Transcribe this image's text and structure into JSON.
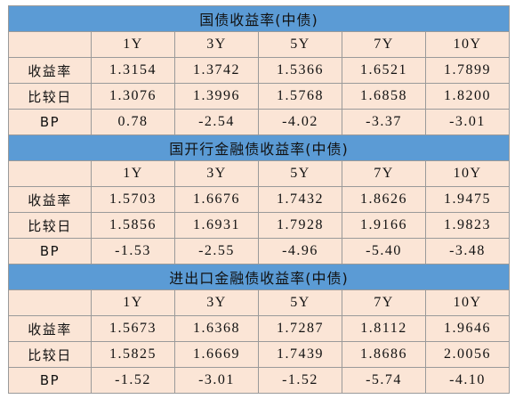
{
  "sections": [
    {
      "title": "国债收益率(中债)",
      "columns": [
        "1Y",
        "3Y",
        "5Y",
        "7Y",
        "10Y"
      ],
      "rows": [
        {
          "label": "收益率",
          "values": [
            "1.3154",
            "1.3742",
            "1.5366",
            "1.6521",
            "1.7899"
          ]
        },
        {
          "label": "比较日",
          "values": [
            "1.3076",
            "1.3996",
            "1.5768",
            "1.6858",
            "1.8200"
          ]
        },
        {
          "label": "BP",
          "values": [
            "0.78",
            "-2.54",
            "-4.02",
            "-3.37",
            "-3.01"
          ]
        }
      ]
    },
    {
      "title": "国开行金融债收益率(中债)",
      "columns": [
        "1Y",
        "3Y",
        "5Y",
        "7Y",
        "10Y"
      ],
      "rows": [
        {
          "label": "收益率",
          "values": [
            "1.5703",
            "1.6676",
            "1.7432",
            "1.8626",
            "1.9475"
          ]
        },
        {
          "label": "比较日",
          "values": [
            "1.5856",
            "1.6931",
            "1.7928",
            "1.9166",
            "1.9823"
          ]
        },
        {
          "label": "BP",
          "values": [
            "-1.53",
            "-2.55",
            "-4.96",
            "-5.40",
            "-3.48"
          ]
        }
      ]
    },
    {
      "title": "进出口金融债收益率(中债)",
      "columns": [
        "1Y",
        "3Y",
        "5Y",
        "7Y",
        "10Y"
      ],
      "rows": [
        {
          "label": "收益率",
          "values": [
            "1.5673",
            "1.6368",
            "1.7287",
            "1.8112",
            "1.9646"
          ]
        },
        {
          "label": "比较日",
          "values": [
            "1.5825",
            "1.6669",
            "1.7439",
            "1.8686",
            "2.0056"
          ]
        },
        {
          "label": "BP",
          "values": [
            "-1.52",
            "-3.01",
            "-1.52",
            "-5.74",
            "-4.10"
          ]
        }
      ]
    }
  ]
}
